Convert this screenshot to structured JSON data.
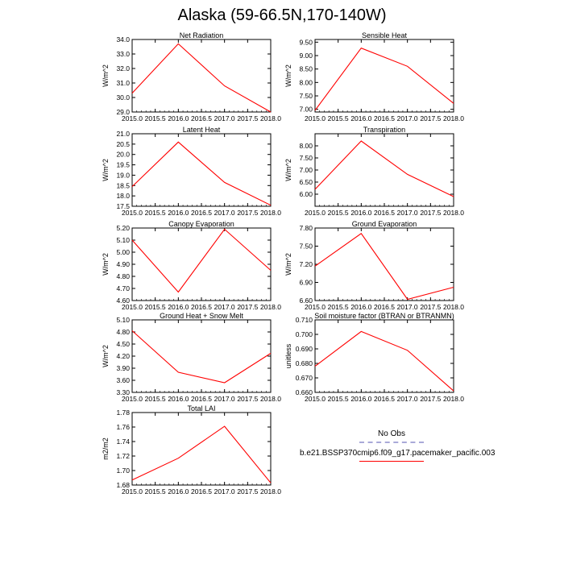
{
  "title": "Alaska (59-66.5N,170-140W)",
  "legend": {
    "entries": [
      {
        "label": "No Obs",
        "color": "#a9a9d8",
        "style": "dashed"
      },
      {
        "label": "b.e21.BSSP370cmip6.f09_g17.pacemaker_pacific.003",
        "color": "#ff0000",
        "style": "solid"
      }
    ]
  },
  "chart_data": [
    {
      "type": "line",
      "title": "Net Radiation",
      "xlabel": "",
      "ylabel": "W/m^2",
      "xlim": [
        2015.0,
        2018.0
      ],
      "ylim": [
        29.0,
        34.0
      ],
      "x_ticks": [
        "2015.0",
        "2015.5",
        "2016.0",
        "2016.5",
        "2017.0",
        "2017.5",
        "2018.0"
      ],
      "y_ticks": [
        "29.0",
        "30.0",
        "31.0",
        "32.0",
        "33.0",
        "34.0"
      ],
      "series": [
        {
          "name": "b.e21.BSSP370cmip6.f09_g17.pacemaker_pacific.003",
          "color": "#ff0000",
          "x": [
            2015.0,
            2016.0,
            2017.0,
            2018.0
          ],
          "y": [
            30.3,
            33.7,
            30.8,
            29.0
          ]
        }
      ]
    },
    {
      "type": "line",
      "title": "Sensible Heat",
      "xlabel": "",
      "ylabel": "W/m^2",
      "xlim": [
        2015.0,
        2018.0
      ],
      "ylim": [
        6.9,
        9.6
      ],
      "x_ticks": [
        "2015.0",
        "2015.5",
        "2016.0",
        "2016.5",
        "2017.0",
        "2017.5",
        "2018.0"
      ],
      "y_ticks": [
        "7.00",
        "7.50",
        "8.00",
        "8.50",
        "9.00",
        "9.50"
      ],
      "series": [
        {
          "name": "b.e21.BSSP370cmip6.f09_g17.pacemaker_pacific.003",
          "color": "#ff0000",
          "x": [
            2015.0,
            2016.0,
            2017.0,
            2018.0
          ],
          "y": [
            6.96,
            9.28,
            8.6,
            7.22
          ]
        }
      ]
    },
    {
      "type": "line",
      "title": "Latent Heat",
      "xlabel": "",
      "ylabel": "W/m^2",
      "xlim": [
        2015.0,
        2018.0
      ],
      "ylim": [
        17.5,
        21.0
      ],
      "x_ticks": [
        "2015.0",
        "2015.5",
        "2016.0",
        "2016.5",
        "2017.0",
        "2017.5",
        "2018.0"
      ],
      "y_ticks": [
        "17.5",
        "18.0",
        "18.5",
        "19.0",
        "19.5",
        "20.0",
        "20.5",
        "21.0"
      ],
      "series": [
        {
          "name": "b.e21.BSSP370cmip6.f09_g17.pacemaker_pacific.003",
          "color": "#ff0000",
          "x": [
            2015.0,
            2016.0,
            2017.0,
            2018.0
          ],
          "y": [
            18.45,
            20.6,
            18.65,
            17.55
          ]
        }
      ]
    },
    {
      "type": "line",
      "title": "Transpiration",
      "xlabel": "",
      "ylabel": "W/m^2",
      "xlim": [
        2015.0,
        2018.0
      ],
      "ylim": [
        5.5,
        8.5
      ],
      "x_ticks": [
        "2015.0",
        "2015.5",
        "2016.0",
        "2016.5",
        "2017.0",
        "2017.5",
        "2018.0"
      ],
      "y_ticks": [
        "6.00",
        "6.50",
        "7.00",
        "7.50",
        "8.00"
      ],
      "series": [
        {
          "name": "b.e21.BSSP370cmip6.f09_g17.pacemaker_pacific.003",
          "color": "#ff0000",
          "x": [
            2015.0,
            2016.0,
            2017.0,
            2018.0
          ],
          "y": [
            6.2,
            8.2,
            6.82,
            5.9
          ]
        }
      ]
    },
    {
      "type": "line",
      "title": "Canopy Evaporation",
      "xlabel": "",
      "ylabel": "W/m^2",
      "xlim": [
        2015.0,
        2018.0
      ],
      "ylim": [
        4.6,
        5.2
      ],
      "x_ticks": [
        "2015.0",
        "2015.5",
        "2016.0",
        "2016.5",
        "2017.0",
        "2017.5",
        "2018.0"
      ],
      "y_ticks": [
        "4.60",
        "4.70",
        "4.80",
        "4.90",
        "5.00",
        "5.10",
        "5.20"
      ],
      "series": [
        {
          "name": "b.e21.BSSP370cmip6.f09_g17.pacemaker_pacific.003",
          "color": "#ff0000",
          "x": [
            2015.0,
            2016.0,
            2017.0,
            2018.0
          ],
          "y": [
            5.1,
            4.67,
            5.19,
            4.85
          ]
        }
      ]
    },
    {
      "type": "line",
      "title": "Ground Evaporation",
      "xlabel": "",
      "ylabel": "W/m^2",
      "xlim": [
        2015.0,
        2018.0
      ],
      "ylim": [
        6.6,
        7.8
      ],
      "x_ticks": [
        "2015.0",
        "2015.5",
        "2016.0",
        "2016.5",
        "2017.0",
        "2017.5",
        "2018.0"
      ],
      "y_ticks": [
        "6.60",
        "6.90",
        "7.20",
        "7.50",
        "7.80"
      ],
      "series": [
        {
          "name": "b.e21.BSSP370cmip6.f09_g17.pacemaker_pacific.003",
          "color": "#ff0000",
          "x": [
            2015.0,
            2016.0,
            2017.0,
            2018.0
          ],
          "y": [
            7.17,
            7.71,
            6.62,
            6.82
          ]
        }
      ]
    },
    {
      "type": "line",
      "title": "Ground Heat + Snow Melt",
      "xlabel": "",
      "ylabel": "W/m^2",
      "xlim": [
        2015.0,
        2018.0
      ],
      "ylim": [
        3.3,
        5.1
      ],
      "x_ticks": [
        "2015.0",
        "2015.5",
        "2016.0",
        "2016.5",
        "2017.0",
        "2017.5",
        "2018.0"
      ],
      "y_ticks": [
        "3.30",
        "3.60",
        "3.90",
        "4.20",
        "4.50",
        "4.80",
        "5.10"
      ],
      "series": [
        {
          "name": "b.e21.BSSP370cmip6.f09_g17.pacemaker_pacific.003",
          "color": "#ff0000",
          "x": [
            2015.0,
            2016.0,
            2017.0,
            2018.0
          ],
          "y": [
            4.83,
            3.8,
            3.54,
            4.27
          ]
        }
      ]
    },
    {
      "type": "line",
      "title": "Soil moisture factor (BTRAN or BTRANMN)",
      "xlabel": "",
      "ylabel": "unitless",
      "xlim": [
        2015.0,
        2018.0
      ],
      "ylim": [
        0.66,
        0.71
      ],
      "x_ticks": [
        "2015.0",
        "2015.5",
        "2016.0",
        "2016.5",
        "2017.0",
        "2017.5",
        "2018.0"
      ],
      "y_ticks": [
        "0.660",
        "0.670",
        "0.680",
        "0.690",
        "0.700",
        "0.710"
      ],
      "series": [
        {
          "name": "b.e21.BSSP370cmip6.f09_g17.pacemaker_pacific.003",
          "color": "#ff0000",
          "x": [
            2015.0,
            2016.0,
            2017.0,
            2018.0
          ],
          "y": [
            0.678,
            0.702,
            0.689,
            0.661
          ]
        }
      ]
    },
    {
      "type": "line",
      "title": "Total LAI",
      "xlabel": "",
      "ylabel": "m2/m2",
      "xlim": [
        2015.0,
        2018.0
      ],
      "ylim": [
        1.68,
        1.78
      ],
      "x_ticks": [
        "2015.0",
        "2015.5",
        "2016.0",
        "2016.5",
        "2017.0",
        "2017.5",
        "2018.0"
      ],
      "y_ticks": [
        "1.68",
        "1.70",
        "1.72",
        "1.74",
        "1.76",
        "1.78"
      ],
      "series": [
        {
          "name": "b.e21.BSSP370cmip6.f09_g17.pacemaker_pacific.003",
          "color": "#ff0000",
          "x": [
            2015.0,
            2016.0,
            2017.0,
            2018.0
          ],
          "y": [
            1.687,
            1.717,
            1.761,
            1.683
          ]
        }
      ]
    }
  ]
}
